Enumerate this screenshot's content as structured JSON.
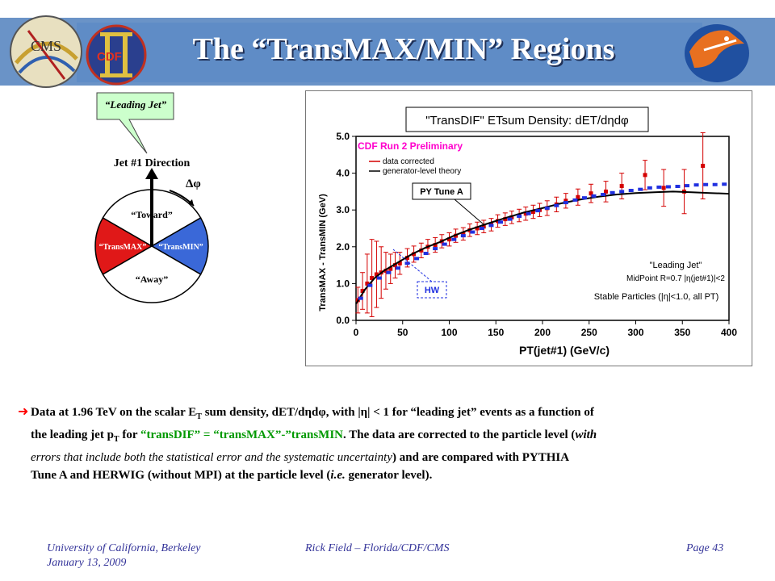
{
  "header": {
    "title": "The “TransMAX/MIN” Regions",
    "logo_left_text": "CMS",
    "logo_mid_text": "CDF"
  },
  "diagram": {
    "callout": "“Leading Jet”",
    "jet_direction": "Jet #1 Direction",
    "delta_phi": "Δφ",
    "toward": "“Toward”",
    "away": "“Away”",
    "transmax": "“TransMAX”",
    "transmin": "“TransMIN”"
  },
  "chart_data": {
    "type": "line",
    "title": "\"TransDIF\" ETsum Density: dET/dηdφ",
    "xlabel": "PT(jet#1)  (GeV/c)",
    "ylabel": "TransMAX - TransMIN (GeV)",
    "xlim": [
      0,
      400
    ],
    "ylim": [
      0,
      5
    ],
    "xticks": [
      "0",
      "50",
      "100",
      "150",
      "200",
      "250",
      "300",
      "350",
      "400"
    ],
    "yticks": [
      "0.0",
      "1.0",
      "2.0",
      "3.0",
      "4.0",
      "5.0"
    ],
    "annotations": {
      "prelim": "CDF Run 2 Preliminary",
      "legend1": "data corrected",
      "legend2": "generator-level theory",
      "pytune": "PY Tune A",
      "hw": "HW",
      "cut1": "\"Leading Jet\"",
      "cut2": "MidPoint R=0.7  |η(jet#1)|<2",
      "cut3": "Stable Particles (|η|<1.0, all PT)"
    },
    "series": [
      {
        "name": "data corrected",
        "color": "#d40000",
        "points": [
          [
            2,
            0.55,
            0.35
          ],
          [
            7,
            0.8,
            0.5
          ],
          [
            12,
            1.0,
            0.8
          ],
          [
            17,
            1.15,
            1.05
          ],
          [
            22,
            1.25,
            0.9
          ],
          [
            27,
            1.3,
            0.7
          ],
          [
            32,
            1.35,
            0.5
          ],
          [
            37,
            1.4,
            0.4
          ],
          [
            42,
            1.5,
            0.35
          ],
          [
            47,
            1.55,
            0.3
          ],
          [
            55,
            1.7,
            0.25
          ],
          [
            62,
            1.8,
            0.22
          ],
          [
            70,
            1.9,
            0.2
          ],
          [
            77,
            2.0,
            0.2
          ],
          [
            85,
            2.05,
            0.2
          ],
          [
            92,
            2.15,
            0.18
          ],
          [
            100,
            2.2,
            0.18
          ],
          [
            107,
            2.3,
            0.18
          ],
          [
            115,
            2.35,
            0.17
          ],
          [
            122,
            2.45,
            0.17
          ],
          [
            130,
            2.5,
            0.17
          ],
          [
            137,
            2.55,
            0.17
          ],
          [
            145,
            2.6,
            0.17
          ],
          [
            152,
            2.7,
            0.17
          ],
          [
            160,
            2.75,
            0.17
          ],
          [
            167,
            2.8,
            0.17
          ],
          [
            175,
            2.85,
            0.17
          ],
          [
            182,
            2.9,
            0.18
          ],
          [
            190,
            2.95,
            0.18
          ],
          [
            197,
            3.0,
            0.18
          ],
          [
            205,
            3.05,
            0.2
          ],
          [
            215,
            3.15,
            0.2
          ],
          [
            225,
            3.25,
            0.2
          ],
          [
            238,
            3.35,
            0.22
          ],
          [
            252,
            3.45,
            0.25
          ],
          [
            268,
            3.5,
            0.28
          ],
          [
            285,
            3.65,
            0.35
          ],
          [
            310,
            3.95,
            0.4
          ],
          [
            330,
            3.6,
            0.5
          ],
          [
            352,
            3.5,
            0.6
          ],
          [
            372,
            4.2,
            0.9
          ]
        ]
      },
      {
        "name": "PY Tune A",
        "color": "#000000",
        "points": [
          [
            0,
            0.45
          ],
          [
            10,
            0.85
          ],
          [
            20,
            1.15
          ],
          [
            30,
            1.35
          ],
          [
            40,
            1.5
          ],
          [
            50,
            1.65
          ],
          [
            60,
            1.8
          ],
          [
            75,
            1.98
          ],
          [
            90,
            2.13
          ],
          [
            105,
            2.3
          ],
          [
            120,
            2.45
          ],
          [
            140,
            2.62
          ],
          [
            160,
            2.78
          ],
          [
            180,
            2.93
          ],
          [
            200,
            3.05
          ],
          [
            220,
            3.18
          ],
          [
            240,
            3.28
          ],
          [
            260,
            3.36
          ],
          [
            280,
            3.42
          ],
          [
            300,
            3.46
          ],
          [
            320,
            3.48
          ],
          [
            340,
            3.5
          ],
          [
            360,
            3.48
          ],
          [
            380,
            3.46
          ],
          [
            400,
            3.44
          ]
        ]
      },
      {
        "name": "HW",
        "color": "#2030e0",
        "points": [
          [
            5,
            0.6
          ],
          [
            15,
            0.95
          ],
          [
            25,
            1.15
          ],
          [
            35,
            1.3
          ],
          [
            45,
            1.42
          ],
          [
            55,
            1.55
          ],
          [
            65,
            1.68
          ],
          [
            75,
            1.82
          ],
          [
            85,
            1.95
          ],
          [
            95,
            2.07
          ],
          [
            105,
            2.2
          ],
          [
            115,
            2.3
          ],
          [
            125,
            2.4
          ],
          [
            135,
            2.5
          ],
          [
            145,
            2.58
          ],
          [
            155,
            2.67
          ],
          [
            165,
            2.75
          ],
          [
            175,
            2.83
          ],
          [
            185,
            2.9
          ],
          [
            195,
            2.98
          ],
          [
            205,
            3.05
          ],
          [
            215,
            3.12
          ],
          [
            225,
            3.2
          ],
          [
            235,
            3.27
          ],
          [
            245,
            3.33
          ],
          [
            255,
            3.38
          ],
          [
            265,
            3.42
          ],
          [
            275,
            3.47
          ],
          [
            285,
            3.5
          ],
          [
            295,
            3.53
          ],
          [
            305,
            3.56
          ],
          [
            315,
            3.6
          ],
          [
            325,
            3.62
          ],
          [
            335,
            3.63
          ],
          [
            345,
            3.64
          ],
          [
            355,
            3.66
          ],
          [
            365,
            3.68
          ],
          [
            375,
            3.69
          ],
          [
            385,
            3.69
          ],
          [
            395,
            3.7
          ]
        ]
      }
    ]
  },
  "body": {
    "line1": "Data at 1.96 TeV on the scalar E",
    "line1b": "T",
    "line1c": " sum density, dET/dηdφ, with |η| < 1 for “leading jet” events as a function of",
    "line2a": "the leading jet p",
    "line2b": "T",
    "line2c": " for ",
    "line2d": "“transDIF” = “transMAX”-”transMIN",
    "line2e": ".  The data are corrected to the particle level (",
    "line2f": "with",
    "line3a": "errors that include both the statistical error and the systematic uncertainty",
    "line3b": ") and are compared with PYTHIA",
    "line4a": "Tune A and HERWIG (without MPI) at the particle level (",
    "line4b": "i.e.",
    "line4c": " generator level)."
  },
  "footer": {
    "university": "University of California, Berkeley",
    "date": "January 13, 2009",
    "author": "Rick Field – Florida/CDF/CMS",
    "page": "Page 43"
  }
}
